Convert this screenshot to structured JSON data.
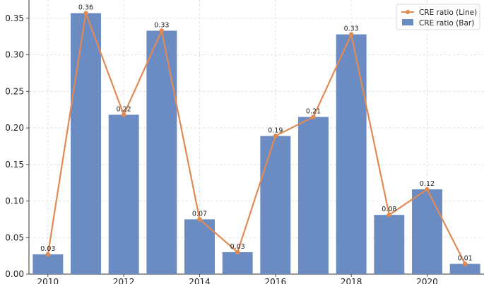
{
  "chart_data": {
    "type": "bar",
    "x": [
      2010,
      2011,
      2012,
      2013,
      2014,
      2015,
      2016,
      2017,
      2018,
      2019,
      2020,
      2021
    ],
    "series": [
      {
        "name": "CRE ratio (Bar)",
        "type": "bar",
        "color": "#6b8bc3",
        "values": [
          0.027,
          0.357,
          0.218,
          0.333,
          0.075,
          0.03,
          0.189,
          0.215,
          0.328,
          0.081,
          0.116,
          0.014
        ]
      },
      {
        "name": "CRE ratio (Line)",
        "type": "line",
        "color": "#e38a52",
        "values": [
          0.027,
          0.357,
          0.218,
          0.333,
          0.075,
          0.03,
          0.189,
          0.215,
          0.328,
          0.081,
          0.116,
          0.014
        ]
      }
    ],
    "data_labels": [
      "0.03",
      "0.36",
      "0.22",
      "0.33",
      "0.07",
      "0.03",
      "0.19",
      "0.21",
      "0.33",
      "0.08",
      "0.12",
      "0.01"
    ],
    "x_ticks": [
      "2010",
      "2012",
      "2014",
      "2016",
      "2018",
      "2020"
    ],
    "y_ticks": [
      "0.00",
      "0.05",
      "0.10",
      "0.15",
      "0.20",
      "0.25",
      "0.30",
      "0.35"
    ],
    "ylim": [
      0,
      0.375
    ],
    "xlim": [
      2009.5,
      2021.5
    ],
    "grid": true,
    "legend_position": "top-right",
    "title": "",
    "xlabel": "",
    "ylabel": ""
  }
}
